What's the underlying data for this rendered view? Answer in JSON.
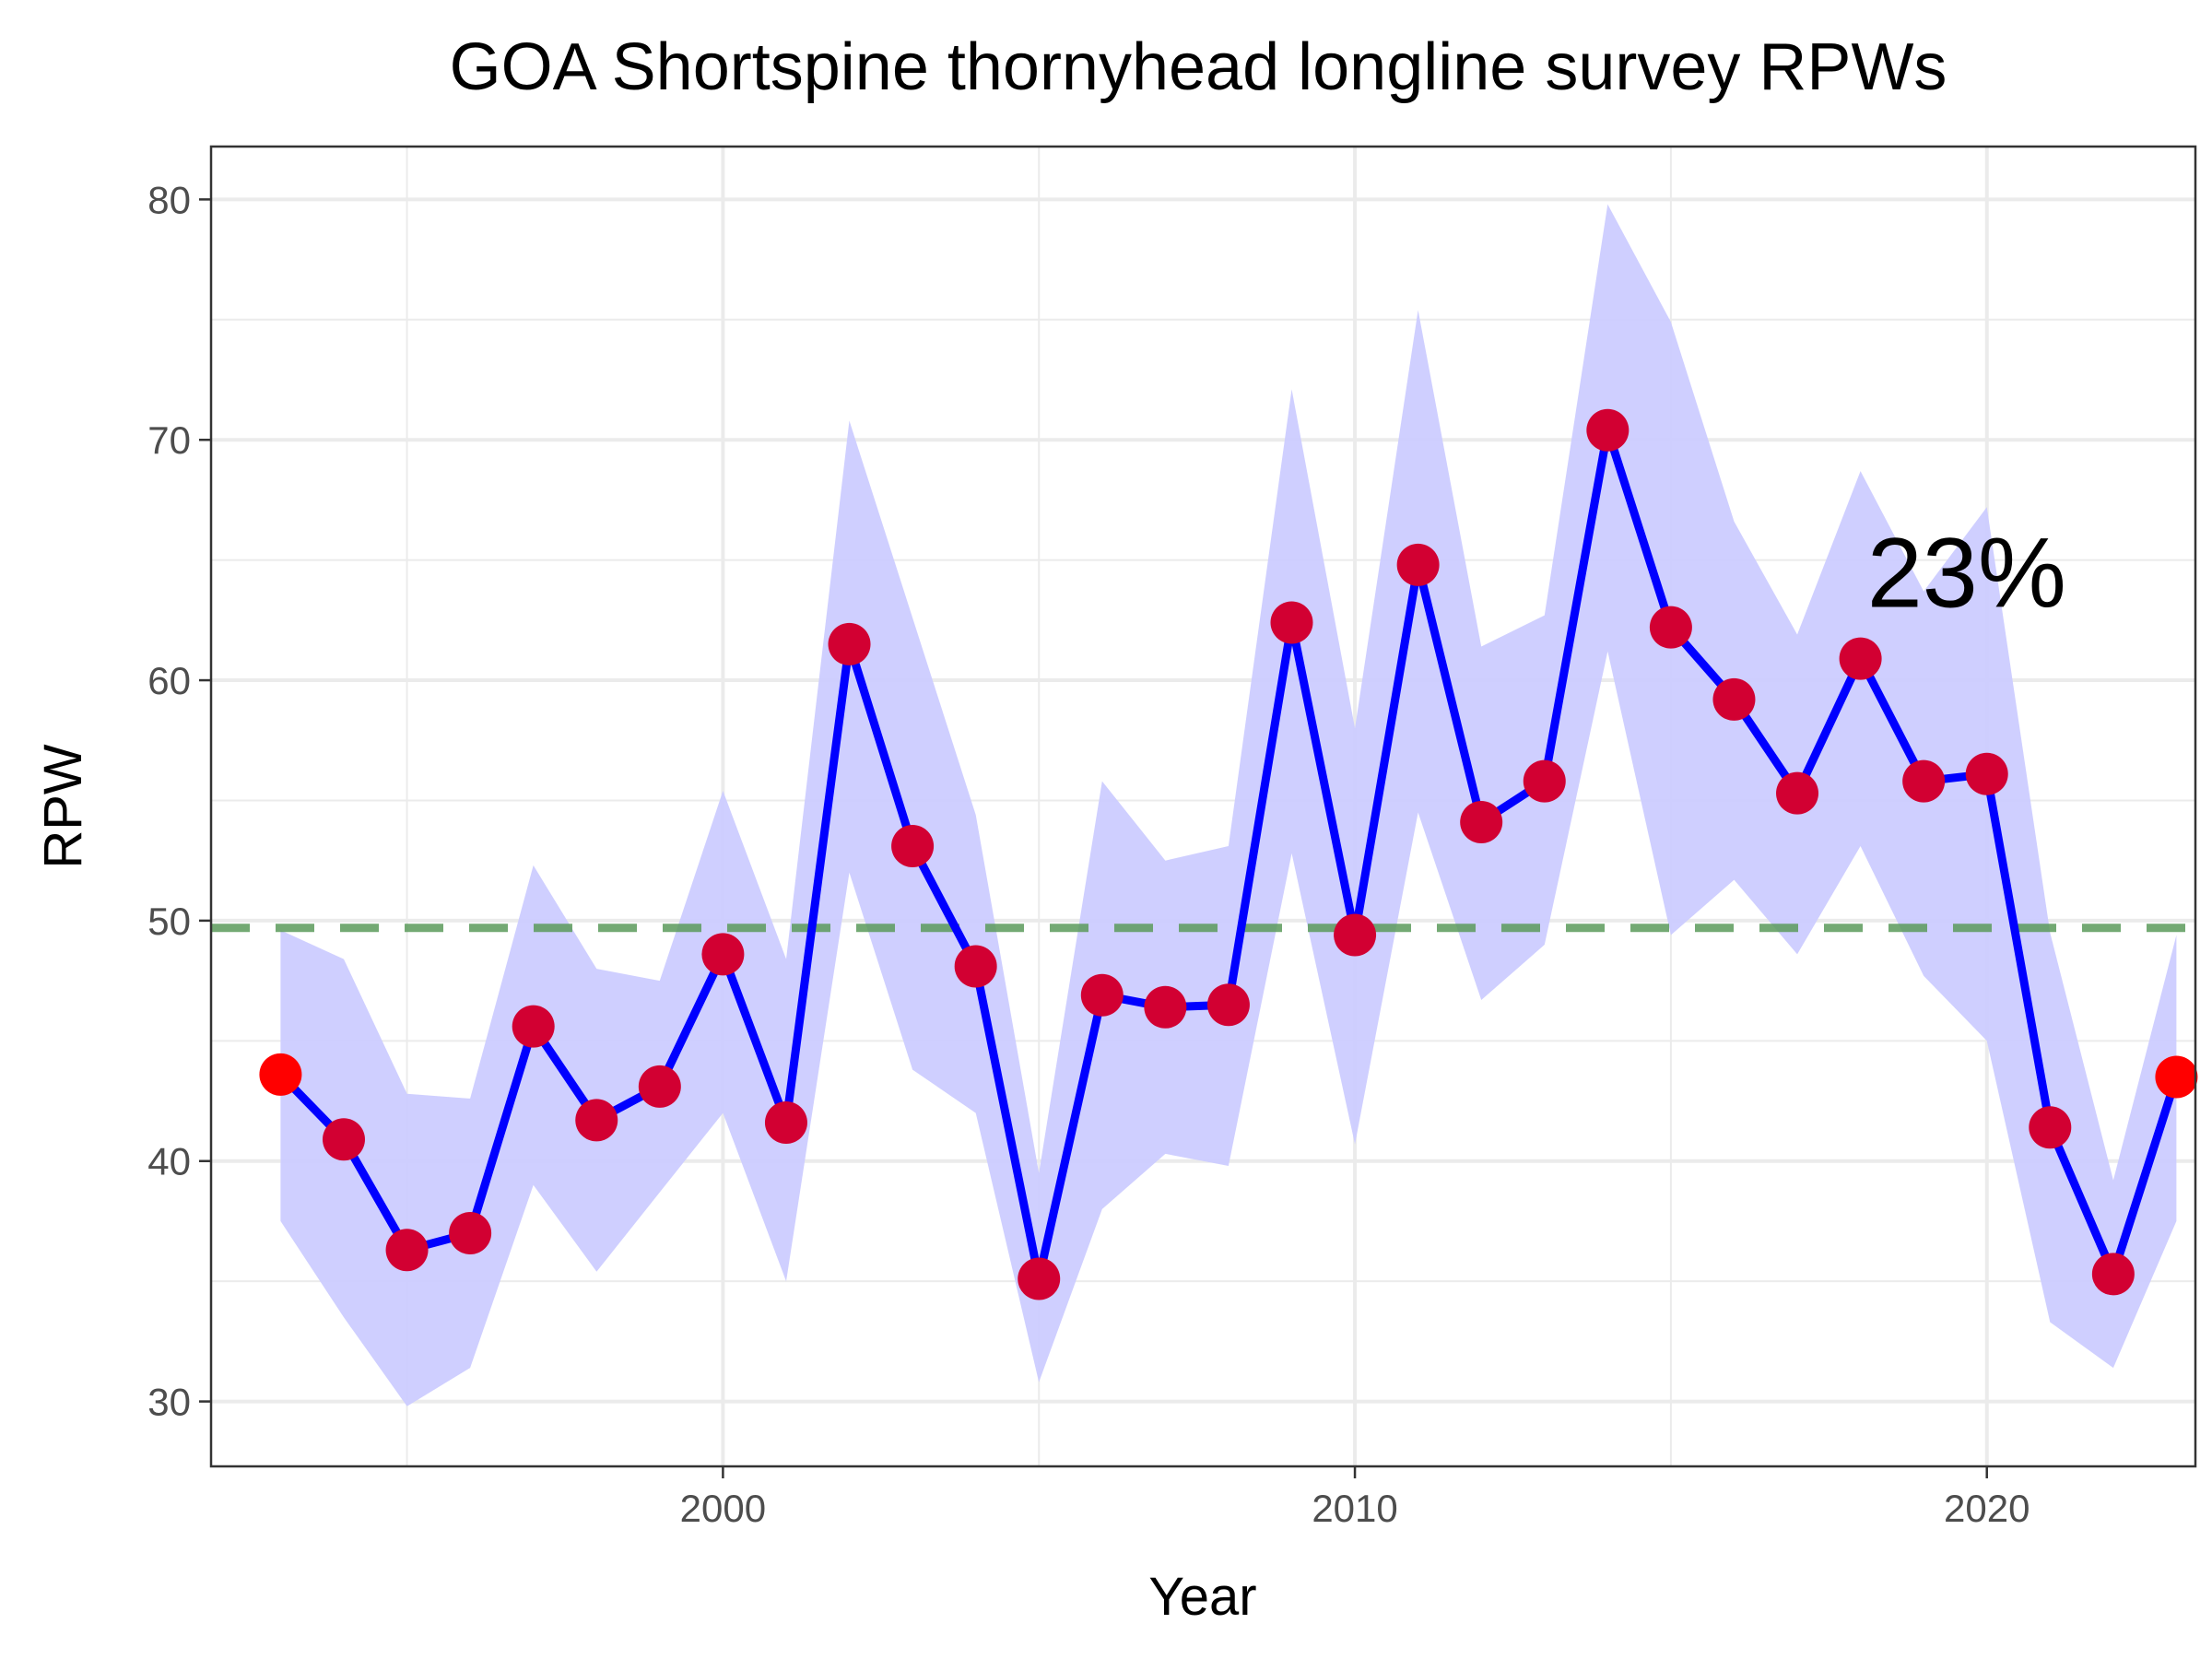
{
  "chart_data": {
    "type": "line",
    "title": "GOA Shortspine thornyhead longline survey RPWs",
    "xlabel": "Year",
    "ylabel": "RPW",
    "xlim": [
      1991.9,
      2023.3
    ],
    "ylim": [
      27.3,
      82.2
    ],
    "x_ticks": [
      2000,
      2010,
      2020
    ],
    "y_ticks": [
      30,
      40,
      50,
      60,
      70,
      80
    ],
    "grid": true,
    "legend": "none",
    "annotation": {
      "text": "23%",
      "x": 2020,
      "y": 64.5
    },
    "reference_line": {
      "y": 49.7,
      "style": "dashed",
      "color": "#5a9a5a"
    },
    "colors": {
      "line": "#0000ff",
      "ribbon": "#ccccff",
      "point": "#d20032",
      "end_point": "#ff0000"
    },
    "series": [
      {
        "x": [
          1993,
          1994,
          1995,
          1996,
          1997,
          1998,
          1999,
          2000,
          2001,
          2002,
          2003,
          2004,
          2005,
          2006,
          2007,
          2008,
          2009,
          2010,
          2011,
          2012,
          2013,
          2014,
          2015,
          2016,
          2017,
          2018,
          2019,
          2020,
          2021,
          2022,
          2023
        ],
        "values": [
          43.6,
          40.9,
          36.3,
          37.0,
          45.6,
          41.7,
          43.1,
          48.6,
          41.6,
          61.5,
          53.1,
          48.1,
          35.1,
          46.9,
          46.4,
          46.5,
          62.4,
          49.4,
          64.8,
          54.1,
          55.8,
          70.4,
          62.2,
          59.2,
          55.3,
          60.9,
          55.8,
          56.1,
          41.4,
          35.3,
          43.5
        ],
        "lower": [
          37.5,
          33.5,
          29.8,
          31.4,
          39.0,
          35.4,
          38.7,
          42.0,
          35.0,
          52.0,
          43.8,
          42.0,
          30.8,
          38.0,
          40.3,
          39.8,
          52.8,
          40.7,
          54.5,
          46.7,
          49.0,
          61.2,
          49.4,
          51.7,
          48.6,
          53.1,
          47.7,
          45.0,
          33.3,
          31.4,
          37.5
        ],
        "upper": [
          49.6,
          48.4,
          42.8,
          42.6,
          52.3,
          48.0,
          47.5,
          55.4,
          48.4,
          70.8,
          62.6,
          54.4,
          39.5,
          55.8,
          52.5,
          53.1,
          72.1,
          58.0,
          75.4,
          61.4,
          62.7,
          79.8,
          74.9,
          66.6,
          61.9,
          68.7,
          63.7,
          67.2,
          49.5,
          39.2,
          49.4
        ]
      }
    ]
  }
}
